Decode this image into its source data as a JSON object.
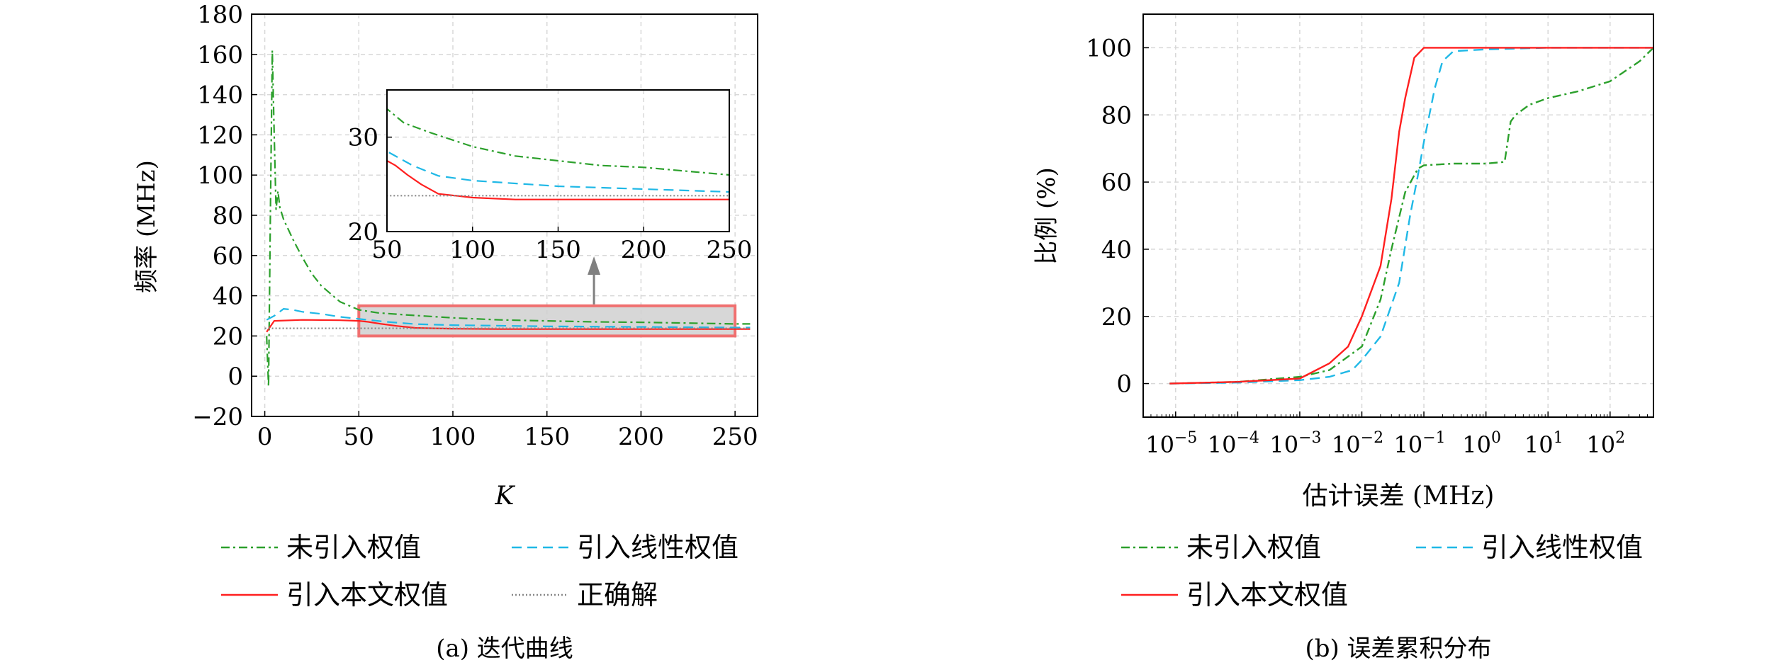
{
  "colors": {
    "unweighted": "#2ca02c",
    "linear": "#1fb8e6",
    "proposed": "#ff1f1f",
    "truth": "#888888",
    "zoom_box": "#f07070",
    "arrow": "#808080",
    "grid": "#d8d8d8"
  },
  "chart_data": [
    {
      "type": "line",
      "caption": "(a) 迭代曲线",
      "xlabel": "K",
      "ylabel": "频率 (MHz)",
      "xlim": [
        -7,
        262
      ],
      "ylim": [
        -20,
        180
      ],
      "xticks": [
        "0",
        "50",
        "100",
        "150",
        "200",
        "250"
      ],
      "yticks": [
        "−20",
        "0",
        "20",
        "40",
        "60",
        "80",
        "100",
        "120",
        "140",
        "160",
        "180"
      ],
      "grid": true,
      "legend_position": "below",
      "series": [
        {
          "name": "未引入权值",
          "style": "dash-dot",
          "color_key": "unweighted",
          "points": [
            [
              1,
              20
            ],
            [
              2,
              -5
            ],
            [
              3,
              80
            ],
            [
              4,
              162
            ],
            [
              5,
              120
            ],
            [
              6,
              83
            ],
            [
              7,
              92
            ],
            [
              8,
              84
            ],
            [
              10,
              78
            ],
            [
              12,
              74
            ],
            [
              15,
              68
            ],
            [
              20,
              59
            ],
            [
              25,
              51
            ],
            [
              30,
              45
            ],
            [
              35,
              41
            ],
            [
              40,
              37
            ],
            [
              45,
              35
            ],
            [
              50,
              33
            ],
            [
              60,
              31.5
            ],
            [
              75,
              30.5
            ],
            [
              100,
              29
            ],
            [
              125,
              28
            ],
            [
              150,
              27.5
            ],
            [
              175,
              27
            ],
            [
              200,
              26.8
            ],
            [
              225,
              26.4
            ],
            [
              250,
              26
            ],
            [
              258,
              26
            ]
          ]
        },
        {
          "name": "引入线性权值",
          "style": "dashed",
          "color_key": "linear",
          "points": [
            [
              1,
              28
            ],
            [
              5,
              30
            ],
            [
              10,
              33.5
            ],
            [
              15,
              33
            ],
            [
              20,
              32
            ],
            [
              30,
              31
            ],
            [
              40,
              29.5
            ],
            [
              50,
              28.5
            ],
            [
              65,
              27
            ],
            [
              80,
              25.9
            ],
            [
              100,
              25.4
            ],
            [
              150,
              24.8
            ],
            [
              200,
              24.5
            ],
            [
              250,
              24.2
            ],
            [
              258,
              24.2
            ]
          ]
        },
        {
          "name": "引入本文权值",
          "style": "solid",
          "color_key": "proposed",
          "points": [
            [
              1,
              22
            ],
            [
              5,
              27.5
            ],
            [
              20,
              28
            ],
            [
              40,
              27.8
            ],
            [
              50,
              27.5
            ],
            [
              55,
              27
            ],
            [
              62,
              26
            ],
            [
              70,
              25
            ],
            [
              80,
              24
            ],
            [
              90,
              23.8
            ],
            [
              100,
              23.6
            ],
            [
              125,
              23.4
            ],
            [
              150,
              23.4
            ],
            [
              200,
              23.4
            ],
            [
              250,
              23.4
            ],
            [
              258,
              23.4
            ]
          ]
        },
        {
          "name": "正确解",
          "style": "dotted",
          "color_key": "truth",
          "points": [
            [
              0,
              23.8
            ],
            [
              258,
              23.8
            ]
          ]
        }
      ],
      "zoom_region": {
        "xlim": [
          50,
          250
        ],
        "ylim": [
          20,
          35
        ]
      },
      "inset": {
        "xlim": [
          50,
          250
        ],
        "ylim": [
          20,
          35
        ],
        "xticks": [
          "50",
          "100",
          "150",
          "200",
          "250"
        ],
        "yticks": [
          "20",
          "30"
        ],
        "grid": true
      }
    },
    {
      "type": "line",
      "caption": "(b) 误差累积分布",
      "xlabel": "估计误差 (MHz)",
      "ylabel": "比例 (%)",
      "xscale": "log",
      "xlim": [
        3e-06,
        500
      ],
      "ylim": [
        -10,
        110
      ],
      "xticks": [
        {
          "base": "10",
          "exp": "−5"
        },
        {
          "base": "10",
          "exp": "−4"
        },
        {
          "base": "10",
          "exp": "−3"
        },
        {
          "base": "10",
          "exp": "−2"
        },
        {
          "base": "10",
          "exp": "−1"
        },
        {
          "base": "10",
          "exp": "0"
        },
        {
          "base": "10",
          "exp": "1"
        },
        {
          "base": "10",
          "exp": "2"
        }
      ],
      "yticks": [
        "0",
        "20",
        "40",
        "60",
        "80",
        "100"
      ],
      "grid": true,
      "legend_position": "below",
      "series": [
        {
          "name": "未引入权值",
          "style": "dash-dot",
          "color_key": "unweighted",
          "points": [
            [
              8e-06,
              0
            ],
            [
              0.0001,
              0.5
            ],
            [
              0.001,
              2
            ],
            [
              0.003,
              4
            ],
            [
              0.01,
              11
            ],
            [
              0.02,
              25
            ],
            [
              0.03,
              40
            ],
            [
              0.05,
              57
            ],
            [
              0.08,
              64
            ],
            [
              0.1,
              65
            ],
            [
              0.3,
              65.5
            ],
            [
              1,
              65.5
            ],
            [
              2,
              66
            ],
            [
              2.5,
              78
            ],
            [
              3,
              80
            ],
            [
              5,
              83
            ],
            [
              10,
              85
            ],
            [
              30,
              87
            ],
            [
              100,
              90
            ],
            [
              300,
              96
            ],
            [
              500,
              100
            ]
          ]
        },
        {
          "name": "引入线性权值",
          "style": "dashed",
          "color_key": "linear",
          "points": [
            [
              8e-06,
              0
            ],
            [
              0.0001,
              0.3
            ],
            [
              0.001,
              1
            ],
            [
              0.003,
              2
            ],
            [
              0.007,
              4
            ],
            [
              0.01,
              7
            ],
            [
              0.02,
              14
            ],
            [
              0.04,
              30
            ],
            [
              0.06,
              50
            ],
            [
              0.08,
              62
            ],
            [
              0.1,
              72
            ],
            [
              0.15,
              88
            ],
            [
              0.2,
              96
            ],
            [
              0.3,
              99
            ],
            [
              1,
              99.5
            ],
            [
              10,
              100
            ],
            [
              500,
              100
            ]
          ]
        },
        {
          "name": "引入本文权值",
          "style": "solid",
          "color_key": "proposed",
          "points": [
            [
              8e-06,
              0
            ],
            [
              0.0001,
              0.5
            ],
            [
              0.001,
              1.5
            ],
            [
              0.003,
              6
            ],
            [
              0.006,
              11
            ],
            [
              0.01,
              20
            ],
            [
              0.02,
              35
            ],
            [
              0.03,
              55
            ],
            [
              0.04,
              75
            ],
            [
              0.05,
              85
            ],
            [
              0.07,
              97
            ],
            [
              0.1,
              100
            ],
            [
              1,
              100
            ],
            [
              500,
              100
            ]
          ]
        }
      ]
    }
  ]
}
